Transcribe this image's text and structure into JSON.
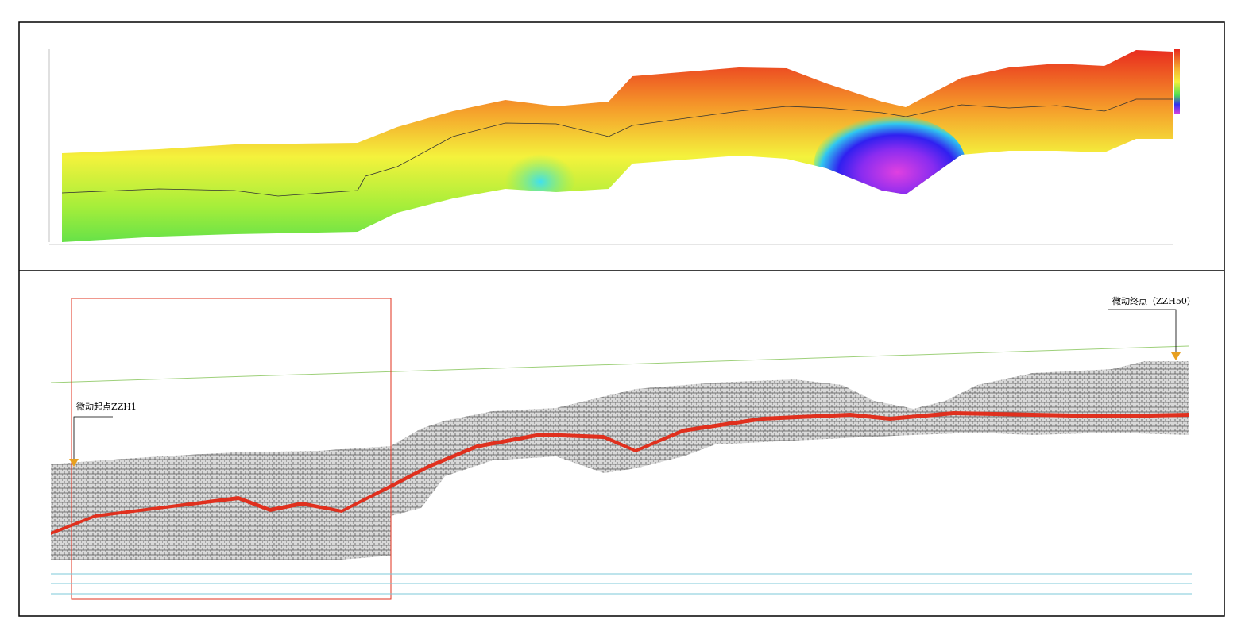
{
  "profile": {
    "start_label": "微动起点ZZH1",
    "end_label": "微动终点（ZZH50）"
  }
}
